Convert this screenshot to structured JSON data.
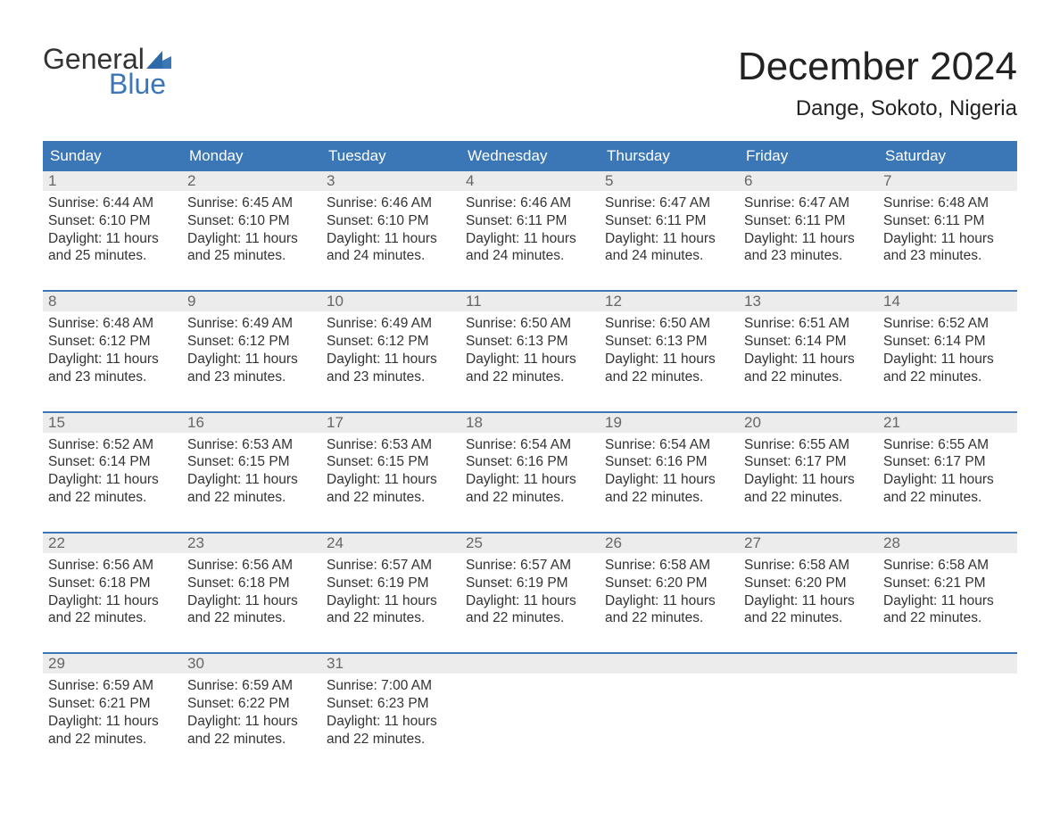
{
  "logo": {
    "part1": "General",
    "part2": "Blue"
  },
  "title": "December 2024",
  "location": "Dange, Sokoto, Nigeria",
  "colors": {
    "header_bg": "#3b77b7",
    "header_text": "#ffffff",
    "daynum_bg": "#ececec",
    "daynum_text": "#666666",
    "body_text": "#333333",
    "week_border": "#3b77b7",
    "logo_blue": "#3b77b7"
  },
  "day_names": [
    "Sunday",
    "Monday",
    "Tuesday",
    "Wednesday",
    "Thursday",
    "Friday",
    "Saturday"
  ],
  "weeks": [
    [
      {
        "n": "1",
        "sunrise": "6:44 AM",
        "sunset": "6:10 PM",
        "dl1": "Daylight: 11 hours",
        "dl2": "and 25 minutes."
      },
      {
        "n": "2",
        "sunrise": "6:45 AM",
        "sunset": "6:10 PM",
        "dl1": "Daylight: 11 hours",
        "dl2": "and 25 minutes."
      },
      {
        "n": "3",
        "sunrise": "6:46 AM",
        "sunset": "6:10 PM",
        "dl1": "Daylight: 11 hours",
        "dl2": "and 24 minutes."
      },
      {
        "n": "4",
        "sunrise": "6:46 AM",
        "sunset": "6:11 PM",
        "dl1": "Daylight: 11 hours",
        "dl2": "and 24 minutes."
      },
      {
        "n": "5",
        "sunrise": "6:47 AM",
        "sunset": "6:11 PM",
        "dl1": "Daylight: 11 hours",
        "dl2": "and 24 minutes."
      },
      {
        "n": "6",
        "sunrise": "6:47 AM",
        "sunset": "6:11 PM",
        "dl1": "Daylight: 11 hours",
        "dl2": "and 23 minutes."
      },
      {
        "n": "7",
        "sunrise": "6:48 AM",
        "sunset": "6:11 PM",
        "dl1": "Daylight: 11 hours",
        "dl2": "and 23 minutes."
      }
    ],
    [
      {
        "n": "8",
        "sunrise": "6:48 AM",
        "sunset": "6:12 PM",
        "dl1": "Daylight: 11 hours",
        "dl2": "and 23 minutes."
      },
      {
        "n": "9",
        "sunrise": "6:49 AM",
        "sunset": "6:12 PM",
        "dl1": "Daylight: 11 hours",
        "dl2": "and 23 minutes."
      },
      {
        "n": "10",
        "sunrise": "6:49 AM",
        "sunset": "6:12 PM",
        "dl1": "Daylight: 11 hours",
        "dl2": "and 23 minutes."
      },
      {
        "n": "11",
        "sunrise": "6:50 AM",
        "sunset": "6:13 PM",
        "dl1": "Daylight: 11 hours",
        "dl2": "and 22 minutes."
      },
      {
        "n": "12",
        "sunrise": "6:50 AM",
        "sunset": "6:13 PM",
        "dl1": "Daylight: 11 hours",
        "dl2": "and 22 minutes."
      },
      {
        "n": "13",
        "sunrise": "6:51 AM",
        "sunset": "6:14 PM",
        "dl1": "Daylight: 11 hours",
        "dl2": "and 22 minutes."
      },
      {
        "n": "14",
        "sunrise": "6:52 AM",
        "sunset": "6:14 PM",
        "dl1": "Daylight: 11 hours",
        "dl2": "and 22 minutes."
      }
    ],
    [
      {
        "n": "15",
        "sunrise": "6:52 AM",
        "sunset": "6:14 PM",
        "dl1": "Daylight: 11 hours",
        "dl2": "and 22 minutes."
      },
      {
        "n": "16",
        "sunrise": "6:53 AM",
        "sunset": "6:15 PM",
        "dl1": "Daylight: 11 hours",
        "dl2": "and 22 minutes."
      },
      {
        "n": "17",
        "sunrise": "6:53 AM",
        "sunset": "6:15 PM",
        "dl1": "Daylight: 11 hours",
        "dl2": "and 22 minutes."
      },
      {
        "n": "18",
        "sunrise": "6:54 AM",
        "sunset": "6:16 PM",
        "dl1": "Daylight: 11 hours",
        "dl2": "and 22 minutes."
      },
      {
        "n": "19",
        "sunrise": "6:54 AM",
        "sunset": "6:16 PM",
        "dl1": "Daylight: 11 hours",
        "dl2": "and 22 minutes."
      },
      {
        "n": "20",
        "sunrise": "6:55 AM",
        "sunset": "6:17 PM",
        "dl1": "Daylight: 11 hours",
        "dl2": "and 22 minutes."
      },
      {
        "n": "21",
        "sunrise": "6:55 AM",
        "sunset": "6:17 PM",
        "dl1": "Daylight: 11 hours",
        "dl2": "and 22 minutes."
      }
    ],
    [
      {
        "n": "22",
        "sunrise": "6:56 AM",
        "sunset": "6:18 PM",
        "dl1": "Daylight: 11 hours",
        "dl2": "and 22 minutes."
      },
      {
        "n": "23",
        "sunrise": "6:56 AM",
        "sunset": "6:18 PM",
        "dl1": "Daylight: 11 hours",
        "dl2": "and 22 minutes."
      },
      {
        "n": "24",
        "sunrise": "6:57 AM",
        "sunset": "6:19 PM",
        "dl1": "Daylight: 11 hours",
        "dl2": "and 22 minutes."
      },
      {
        "n": "25",
        "sunrise": "6:57 AM",
        "sunset": "6:19 PM",
        "dl1": "Daylight: 11 hours",
        "dl2": "and 22 minutes."
      },
      {
        "n": "26",
        "sunrise": "6:58 AM",
        "sunset": "6:20 PM",
        "dl1": "Daylight: 11 hours",
        "dl2": "and 22 minutes."
      },
      {
        "n": "27",
        "sunrise": "6:58 AM",
        "sunset": "6:20 PM",
        "dl1": "Daylight: 11 hours",
        "dl2": "and 22 minutes."
      },
      {
        "n": "28",
        "sunrise": "6:58 AM",
        "sunset": "6:21 PM",
        "dl1": "Daylight: 11 hours",
        "dl2": "and 22 minutes."
      }
    ],
    [
      {
        "n": "29",
        "sunrise": "6:59 AM",
        "sunset": "6:21 PM",
        "dl1": "Daylight: 11 hours",
        "dl2": "and 22 minutes."
      },
      {
        "n": "30",
        "sunrise": "6:59 AM",
        "sunset": "6:22 PM",
        "dl1": "Daylight: 11 hours",
        "dl2": "and 22 minutes."
      },
      {
        "n": "31",
        "sunrise": "7:00 AM",
        "sunset": "6:23 PM",
        "dl1": "Daylight: 11 hours",
        "dl2": "and 22 minutes."
      },
      null,
      null,
      null,
      null
    ]
  ],
  "labels": {
    "sunrise": "Sunrise: ",
    "sunset": "Sunset: "
  }
}
